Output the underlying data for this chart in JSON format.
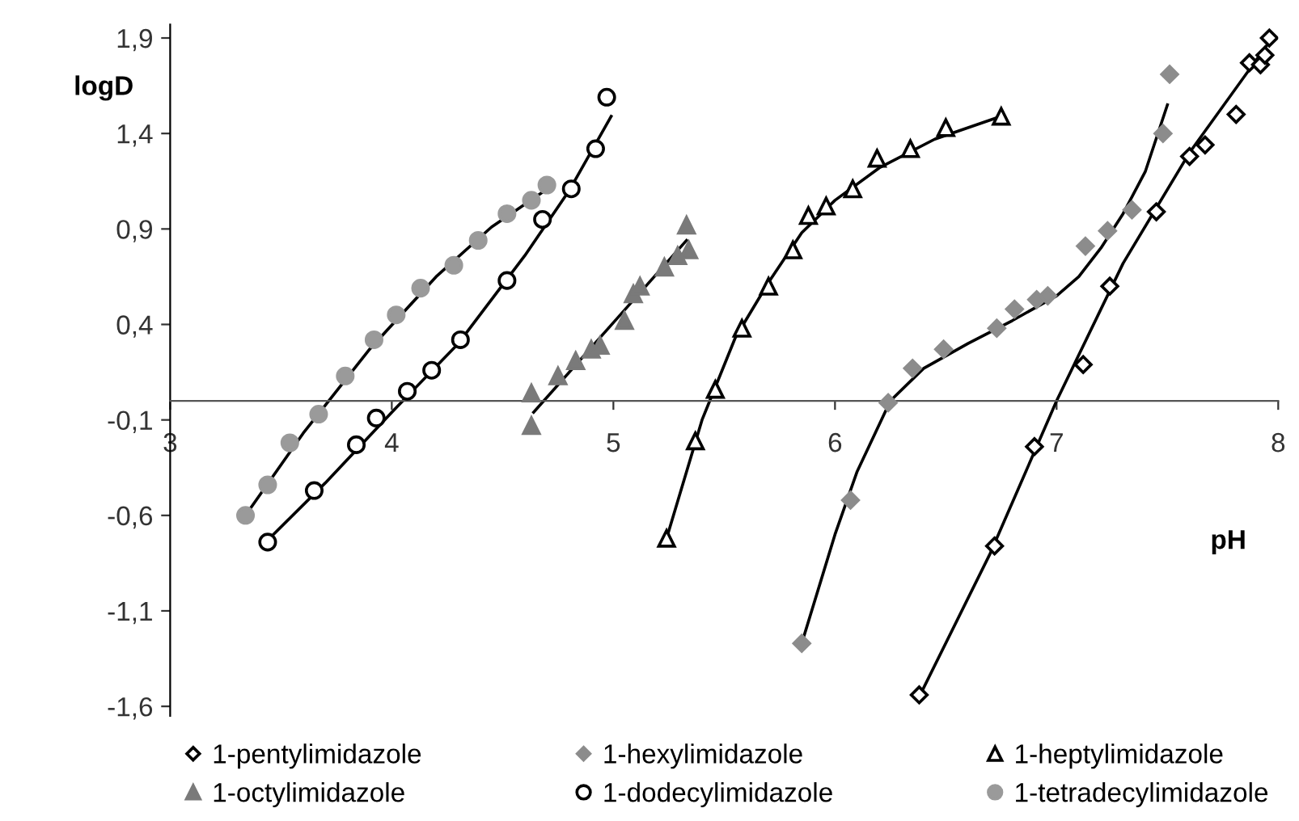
{
  "chart_data": {
    "type": "scatter",
    "xlabel": "pH",
    "ylabel": "logD",
    "xlim": [
      3,
      8
    ],
    "ylim": [
      -1.65,
      1.97
    ],
    "xticks": [
      3,
      4,
      5,
      6,
      7,
      8
    ],
    "yticks": [
      {
        "value": -1.6,
        "label": "-1,6"
      },
      {
        "value": -1.1,
        "label": "-1,1"
      },
      {
        "value": -0.6,
        "label": "-0,6"
      },
      {
        "value": -0.1,
        "label": "-0,1"
      },
      {
        "value": 0.4,
        "label": "0,4"
      },
      {
        "value": 0.9,
        "label": "0,9"
      },
      {
        "value": 1.4,
        "label": "1,4"
      },
      {
        "value": 1.9,
        "label": "1,9"
      }
    ],
    "grid": false,
    "legend": "bottom",
    "series": [
      {
        "name": "1-pentylimidazole",
        "color": "#ffffff",
        "marker": "diamond",
        "x": [
          6.38,
          6.72,
          6.9,
          7.12,
          7.24,
          7.45,
          7.6,
          7.67,
          7.81,
          7.87,
          7.92,
          7.94,
          7.96
        ],
        "values": [
          -1.54,
          -0.76,
          -0.24,
          0.19,
          0.6,
          0.99,
          1.28,
          1.34,
          1.5,
          1.77,
          1.76,
          1.81,
          1.9
        ]
      },
      {
        "name": "1-hexylimidazole",
        "color": "#8c8c8c",
        "marker": "diamond",
        "x": [
          5.85,
          6.07,
          6.24,
          6.35,
          6.49,
          6.73,
          6.81,
          6.91,
          6.96,
          7.13,
          7.23,
          7.34,
          7.48,
          7.51
        ],
        "values": [
          -1.27,
          -0.52,
          -0.01,
          0.17,
          0.27,
          0.38,
          0.48,
          0.53,
          0.55,
          0.81,
          0.89,
          1.0,
          1.4,
          1.71
        ]
      },
      {
        "name": "1-heptylimidazole",
        "color": "#ffffff",
        "marker": "triangle",
        "x": [
          5.24,
          5.37,
          5.46,
          5.58,
          5.7,
          5.81,
          5.88,
          5.96,
          6.08,
          6.19,
          6.34,
          6.5,
          6.75
        ],
        "values": [
          -0.72,
          -0.21,
          0.06,
          0.38,
          0.6,
          0.79,
          0.97,
          1.02,
          1.11,
          1.27,
          1.32,
          1.43,
          1.49
        ]
      },
      {
        "name": "1-octylimidazole",
        "color": "#7a7a7a",
        "marker": "triangle",
        "x": [
          4.63,
          4.63,
          4.75,
          4.83,
          4.9,
          4.94,
          5.05,
          5.09,
          5.12,
          5.23,
          5.29,
          5.34,
          5.33
        ],
        "values": [
          0.04,
          -0.13,
          0.13,
          0.21,
          0.27,
          0.29,
          0.42,
          0.56,
          0.6,
          0.7,
          0.76,
          0.79,
          0.92
        ]
      },
      {
        "name": "1-dodecylimidazole",
        "color": "#ffffff",
        "marker": "circle",
        "x": [
          3.44,
          3.65,
          3.84,
          3.93,
          4.07,
          4.18,
          4.31,
          4.52,
          4.68,
          4.81,
          4.92,
          4.97
        ],
        "values": [
          -0.74,
          -0.47,
          -0.23,
          -0.09,
          0.05,
          0.16,
          0.32,
          0.63,
          0.95,
          1.11,
          1.32,
          1.59
        ]
      },
      {
        "name": "1-tetradecylimidazole",
        "color": "#9a9a9a",
        "marker": "circle",
        "x": [
          3.34,
          3.44,
          3.54,
          3.67,
          3.79,
          3.92,
          4.02,
          4.13,
          4.28,
          4.39,
          4.52,
          4.63,
          4.7
        ],
        "values": [
          -0.6,
          -0.44,
          -0.22,
          -0.07,
          0.13,
          0.32,
          0.45,
          0.59,
          0.71,
          0.84,
          0.98,
          1.05,
          1.13
        ]
      },
      {
        "type": "line",
        "color": "#000000",
        "x": [
          6.38,
          6.7,
          7.0,
          7.3,
          7.6,
          7.96
        ],
        "values": [
          -1.55,
          -0.8,
          0.0,
          0.72,
          1.3,
          1.88
        ]
      },
      {
        "type": "line",
        "color": "#000000",
        "x": [
          5.85,
          6.0,
          6.1,
          6.25,
          6.4,
          6.6,
          6.8,
          7.0,
          7.1,
          7.2,
          7.3,
          7.4,
          7.5
        ],
        "values": [
          -1.27,
          -0.7,
          -0.37,
          0.0,
          0.17,
          0.3,
          0.42,
          0.55,
          0.65,
          0.8,
          0.98,
          1.2,
          1.55
        ]
      },
      {
        "type": "line",
        "color": "#000000",
        "x": [
          5.24,
          5.4,
          5.55,
          5.7,
          5.85,
          6.0,
          6.2,
          6.45,
          6.75
        ],
        "values": [
          -0.72,
          -0.1,
          0.33,
          0.62,
          0.88,
          1.05,
          1.22,
          1.37,
          1.49
        ]
      },
      {
        "type": "line",
        "color": "#000000",
        "x": [
          4.64,
          5.33
        ],
        "values": [
          -0.06,
          0.84
        ]
      },
      {
        "type": "line",
        "color": "#000000",
        "x": [
          3.44,
          3.7,
          4.0,
          4.3,
          4.6,
          4.8,
          4.99
        ],
        "values": [
          -0.73,
          -0.43,
          -0.06,
          0.3,
          0.76,
          1.1,
          1.49
        ]
      },
      {
        "type": "line",
        "color": "#000000",
        "x": [
          3.34,
          3.6,
          3.9,
          4.2,
          4.45,
          4.69
        ],
        "values": [
          -0.6,
          -0.17,
          0.27,
          0.65,
          0.91,
          1.1
        ]
      }
    ]
  }
}
